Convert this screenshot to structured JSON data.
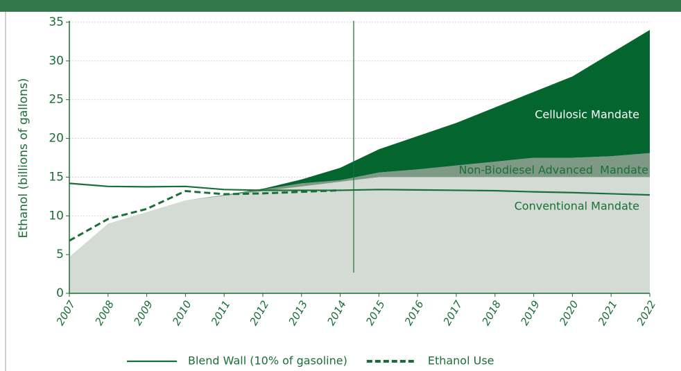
{
  "chart_data": {
    "type": "stacked-area-line",
    "y_label": "Ethanol (billions of gallons)",
    "x": [
      2007,
      2008,
      2009,
      2010,
      2011,
      2012,
      2013,
      2014,
      2015,
      2016,
      2017,
      2018,
      2019,
      2020,
      2021,
      2022
    ],
    "xlim": [
      2007,
      2022
    ],
    "xticks": [
      2007,
      2008,
      2009,
      2010,
      2011,
      2012,
      2013,
      2014,
      2015,
      2016,
      2017,
      2018,
      2019,
      2020,
      2021,
      2022
    ],
    "ylim": [
      0,
      35
    ],
    "yticks": [
      0,
      5,
      10,
      15,
      20,
      25,
      30,
      35
    ],
    "grid": true,
    "series": [
      {
        "name": "Conventional Mandate",
        "kind": "area",
        "color": "#d3dbd4",
        "values": [
          4.7,
          9,
          10.5,
          12,
          12.6,
          13.2,
          13.8,
          14.4,
          15,
          15,
          15,
          15,
          15,
          15,
          15,
          15
        ]
      },
      {
        "name": "Non-Biodiesel Advanced  Mandate",
        "kind": "area",
        "color": "#7e9a86",
        "values": [
          0,
          0,
          0,
          0,
          0.1,
          0.2,
          0.4,
          0.2,
          0.6,
          1,
          1.5,
          2,
          2.5,
          2.5,
          2.7,
          3.1
        ]
      },
      {
        "name": "Cellulosic Mandate",
        "kind": "area",
        "color": "#05652f",
        "values": [
          0,
          0,
          0,
          0,
          0,
          0.1,
          0.5,
          1.6,
          3,
          4.3,
          5.5,
          7,
          8.5,
          10.5,
          13.3,
          15.9
        ]
      },
      {
        "name": "Blend Wall (10% of gasoline)",
        "kind": "line",
        "dash": false,
        "color": "#1a6e37",
        "values": [
          14.2,
          13.8,
          13.75,
          13.8,
          13.4,
          13.3,
          13.3,
          13.3,
          13.4,
          13.35,
          13.3,
          13.25,
          13.1,
          13.0,
          12.85,
          12.7
        ]
      },
      {
        "name": "Ethanol Use",
        "kind": "line",
        "dash": true,
        "color": "#1a6e37",
        "values": [
          6.8,
          9.6,
          10.9,
          13.2,
          12.8,
          12.9,
          13.1,
          13.3,
          null,
          null,
          null,
          null,
          null,
          null,
          null,
          null
        ]
      }
    ]
  }
}
